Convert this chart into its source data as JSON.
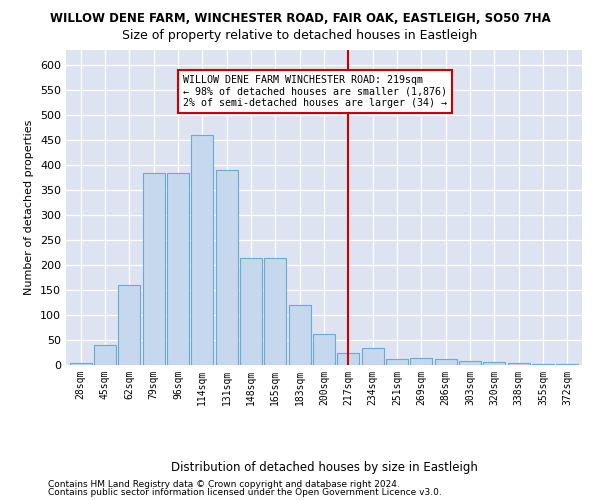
{
  "title": "WILLOW DENE FARM, WINCHESTER ROAD, FAIR OAK, EASTLEIGH, SO50 7HA",
  "subtitle": "Size of property relative to detached houses in Eastleigh",
  "xlabel_bottom": "Distribution of detached houses by size in Eastleigh",
  "ylabel": "Number of detached properties",
  "categories": [
    "28sqm",
    "45sqm",
    "62sqm",
    "79sqm",
    "96sqm",
    "114sqm",
    "131sqm",
    "148sqm",
    "165sqm",
    "183sqm",
    "200sqm",
    "217sqm",
    "234sqm",
    "251sqm",
    "269sqm",
    "286sqm",
    "303sqm",
    "320sqm",
    "338sqm",
    "355sqm",
    "372sqm"
  ],
  "values": [
    5,
    40,
    160,
    385,
    385,
    460,
    390,
    215,
    215,
    120,
    63,
    25,
    35,
    12,
    15,
    12,
    8,
    7,
    5,
    3,
    2
  ],
  "bar_color": "#c5d8ee",
  "bar_edge_color": "#6aaad4",
  "vline_color": "#cc0000",
  "annotation_title": "WILLOW DENE FARM WINCHESTER ROAD: 219sqm",
  "annotation_line1": "← 98% of detached houses are smaller (1,876)",
  "annotation_line2": "2% of semi-detached houses are larger (34) →",
  "annotation_box_color": "#ffffff",
  "annotation_border_color": "#cc0000",
  "ylim": [
    0,
    630
  ],
  "yticks": [
    0,
    50,
    100,
    150,
    200,
    250,
    300,
    350,
    400,
    450,
    500,
    550,
    600
  ],
  "fig_bg_color": "#ffffff",
  "plot_bg_color": "#dde3f0",
  "footer1": "Contains HM Land Registry data © Crown copyright and database right 2024.",
  "footer2": "Contains public sector information licensed under the Open Government Licence v3.0.",
  "title_fontsize": 8.5,
  "subtitle_fontsize": 9.0,
  "footer_fontsize": 6.5
}
